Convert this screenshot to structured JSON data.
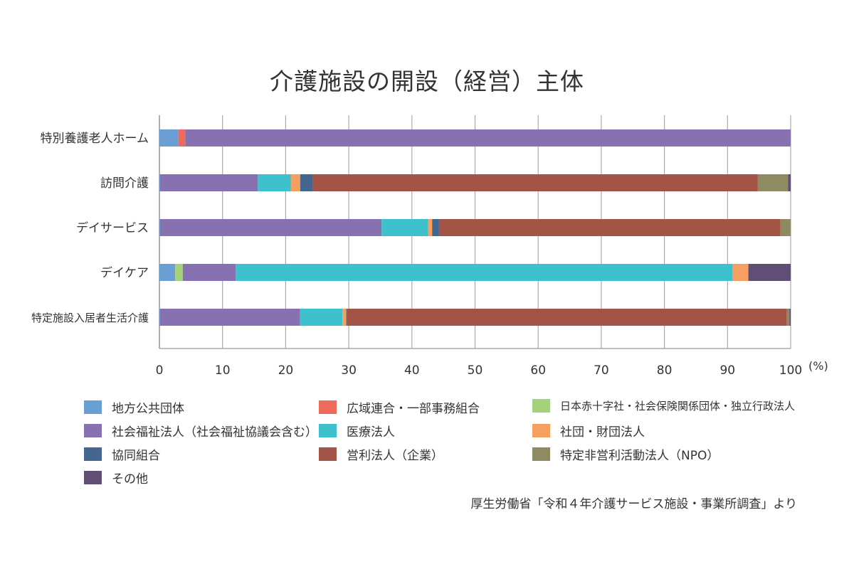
{
  "chart_data": {
    "type": "bar",
    "orientation": "horizontal",
    "stacked": true,
    "title": "介護施設の開設（経営）主体",
    "xlabel": "(%)",
    "xlim": [
      0,
      100
    ],
    "xticks": [
      "0",
      "10",
      "20",
      "30",
      "40",
      "50",
      "60",
      "70",
      "80",
      "90",
      "100"
    ],
    "grid": true,
    "categories": [
      "特別養護老人ホーム",
      "訪問介護",
      "デイサービス",
      "デイケア",
      "特定施設入居者生活介護"
    ],
    "series": [
      {
        "name": "地方公共団体",
        "color": "#6a9fd6",
        "values": [
          3.0,
          0.1,
          0.1,
          2.5,
          0.1
        ]
      },
      {
        "name": "広域連合・一部事務組合",
        "color": "#ee6a5b",
        "values": [
          1.1,
          0,
          0,
          0,
          0
        ]
      },
      {
        "name": "日本赤十字社・社会保険関係団体・独立行政法人",
        "color": "#a3d27b",
        "values": [
          0,
          0,
          0,
          1.2,
          0
        ]
      },
      {
        "name": "社会福祉法人（社会福祉協議会含む）",
        "color": "#8771b1",
        "values": [
          95.9,
          15.5,
          35.1,
          8.4,
          22.2
        ]
      },
      {
        "name": "医療法人",
        "color": "#3ec1cc",
        "values": [
          0,
          5.2,
          7.4,
          78.7,
          6.7
        ]
      },
      {
        "name": "社団・財団法人",
        "color": "#f5a060",
        "values": [
          0,
          1.5,
          0.6,
          2.5,
          0.6
        ]
      },
      {
        "name": "協同組合",
        "color": "#45678f",
        "values": [
          0,
          2.0,
          1.1,
          0,
          0.1
        ]
      },
      {
        "name": "営利法人（企業）",
        "color": "#a45446",
        "values": [
          0,
          70.5,
          54.1,
          0,
          69.7
        ]
      },
      {
        "name": "特定非営利活動法人（NPO）",
        "color": "#8e8b62",
        "values": [
          0,
          4.8,
          1.6,
          0,
          0.4
        ]
      },
      {
        "name": "その他",
        "color": "#5f4f76",
        "values": [
          0,
          0.4,
          0,
          6.7,
          0.2
        ]
      }
    ],
    "legend_position": "bottom"
  },
  "source": "厚生労働省「令和４年介護サービス施設・事業所調査」より"
}
